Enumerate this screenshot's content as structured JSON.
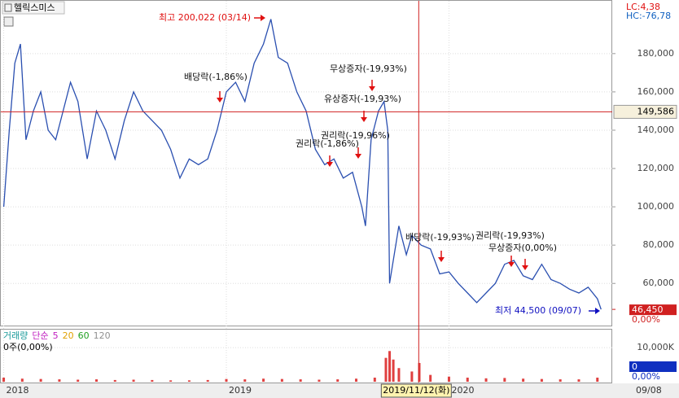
{
  "chart_data": [
    {
      "type": "line",
      "title": "헬릭스미스",
      "lc_label": "LC:4,38",
      "hc_label": "HC:-76,78",
      "x": [
        0,
        0.3,
        0.6,
        0.9,
        1.2,
        1.6,
        2,
        2.4,
        2.8,
        3.2,
        3.6,
        4,
        4.5,
        5,
        5.5,
        6,
        6.5,
        7,
        7.5,
        8,
        8.5,
        9,
        9.5,
        10,
        10.5,
        11,
        11.5,
        12,
        12.5,
        13,
        13.5,
        14,
        14.4,
        14.8,
        15.3,
        15.8,
        16.3,
        16.8,
        17.3,
        17.8,
        18.3,
        18.8,
        19.3,
        19.5,
        19.8,
        20.2,
        20.5,
        20.7,
        20.8,
        21.3,
        21.7,
        22,
        22.5,
        23,
        23.5,
        24,
        24.5,
        25,
        25.5,
        26,
        26.5,
        27,
        27.5,
        28,
        28.5,
        29,
        29.5,
        30,
        30.5,
        31,
        31.5,
        32,
        32.2
      ],
      "series": [
        {
          "color": "#2a4fb0",
          "values": [
            100000,
            140000,
            175000,
            185000,
            135000,
            150000,
            160000,
            140000,
            135000,
            150000,
            165000,
            155000,
            125000,
            150000,
            140000,
            125000,
            145000,
            160000,
            150000,
            145000,
            140000,
            130000,
            115000,
            125000,
            122000,
            125000,
            140000,
            160000,
            165000,
            155000,
            175000,
            185000,
            198000,
            178000,
            175000,
            160000,
            150000,
            130000,
            122000,
            125000,
            115000,
            118000,
            100000,
            90000,
            135000,
            150000,
            155000,
            140000,
            60000,
            90000,
            75000,
            85000,
            80000,
            78000,
            65000,
            66000,
            60000,
            55000,
            50000,
            55000,
            60000,
            70000,
            72000,
            64000,
            62000,
            70000,
            62000,
            60000,
            57000,
            55000,
            58000,
            52000,
            46450
          ]
        }
      ],
      "xlim": [
        -0.2,
        32.8
      ],
      "ylim": [
        38000,
        205000
      ],
      "xticks": [
        {
          "value": 0,
          "label": "2018"
        },
        {
          "value": 12,
          "label": "2019"
        },
        {
          "value": 24,
          "label": "2020"
        },
        {
          "value": 34,
          "label": "09/08"
        }
      ],
      "yticks": [
        {
          "value": 60000,
          "label": "60,000"
        },
        {
          "value": 80000,
          "label": "80,000"
        },
        {
          "value": 100000,
          "label": "100,000"
        },
        {
          "value": 120000,
          "label": "120,000"
        },
        {
          "value": 140000,
          "label": "140,000"
        },
        {
          "value": 160000,
          "label": "160,000"
        },
        {
          "value": 180000,
          "label": "180,000"
        }
      ],
      "grid": true,
      "crosshair": {
        "x": 22.37,
        "x_label": "2019/11/12(화)",
        "y": 149586,
        "y_label": "149,586"
      },
      "last": {
        "value": 46450,
        "label": "46,450"
      },
      "change_label": "0,00%",
      "annotations": [
        {
          "text": "최고 200,022 (03/14)",
          "color": "#e01010"
        },
        {
          "text": "배당락(-1,86%)",
          "color": "#111111"
        },
        {
          "text": "무상증자(-19,93%)",
          "color": "#111111"
        },
        {
          "text": "유상증자(-19,93%)",
          "color": "#111111"
        },
        {
          "text": "권리락(-19,96%)",
          "color": "#111111"
        },
        {
          "text": "권리락(-1,86%)",
          "color": "#111111"
        },
        {
          "text": "배당락(-19,93%)",
          "color": "#111111"
        },
        {
          "text": "권리락(-19,93%)",
          "color": "#111111"
        },
        {
          "text": "무상증자(0,00%)",
          "color": "#111111"
        },
        {
          "text": "최저 44,500 (09/07)",
          "color": "#1010c0"
        }
      ]
    },
    {
      "type": "bar",
      "legend": [
        {
          "text": "거래량",
          "color": "#1a9a9a"
        },
        {
          "text": "단순",
          "color": "#c020c0"
        },
        {
          "text": "5",
          "color": "#c020c0"
        },
        {
          "text": "20",
          "color": "#e0a000"
        },
        {
          "text": "60",
          "color": "#20a020"
        },
        {
          "text": "120",
          "color": "#909090"
        }
      ],
      "info": "0주(0,00%)",
      "color": "#e04040",
      "x": [
        0,
        1,
        2,
        3,
        4,
        5,
        6,
        7,
        8,
        9,
        10,
        11,
        12,
        13,
        14,
        15,
        16,
        17,
        18,
        19,
        20,
        20.6,
        20.8,
        21,
        21.3,
        22,
        22.4,
        23,
        24,
        25,
        26,
        27,
        28,
        29,
        30,
        31,
        32
      ],
      "values": [
        1200,
        900,
        800,
        700,
        600,
        700,
        500,
        600,
        500,
        400,
        400,
        500,
        800,
        700,
        900,
        800,
        700,
        600,
        700,
        900,
        1200,
        7000,
        9000,
        6500,
        4000,
        3000,
        5500,
        2000,
        1500,
        1200,
        1000,
        1100,
        900,
        800,
        700,
        700,
        1200
      ],
      "ylim": [
        0,
        14800
      ],
      "yticks": [
        {
          "value": 10000,
          "label": "10,000K"
        }
      ],
      "last": {
        "value": 0,
        "label": "0"
      },
      "change_label": "0,00%"
    }
  ]
}
